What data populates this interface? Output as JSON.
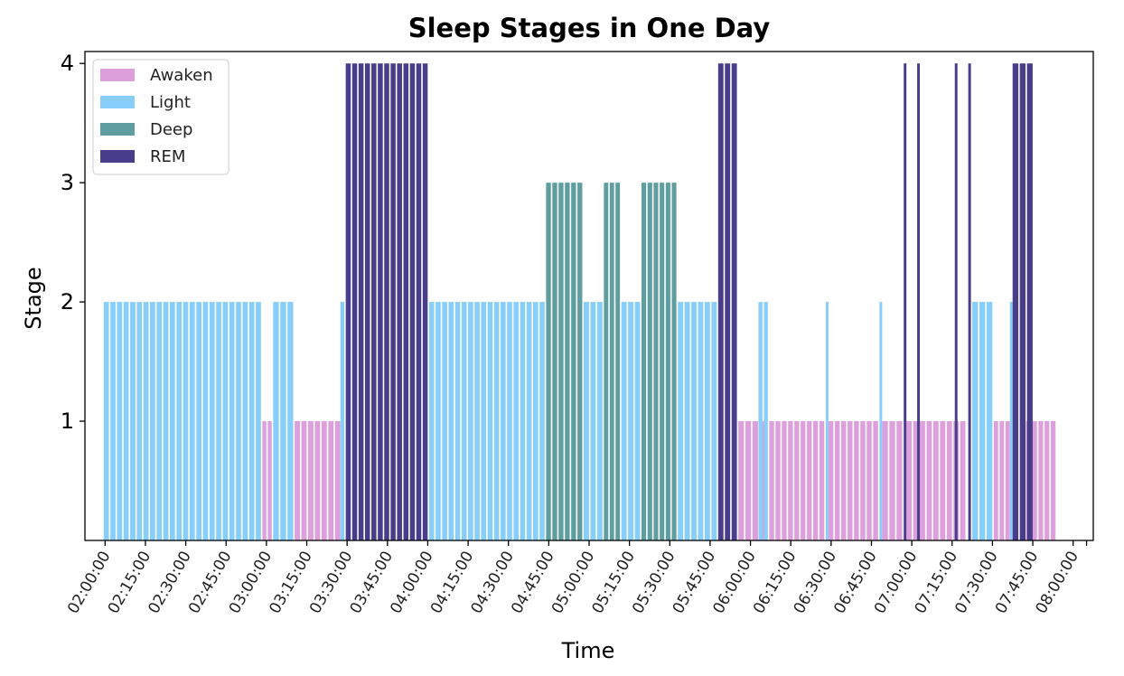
{
  "chart_data": {
    "type": "bar",
    "title": "Sleep Stages in One Day",
    "xlabel": "Time",
    "ylabel": "Stage",
    "ylim": [
      0,
      4.1
    ],
    "xlim_minutes": [
      -7.5,
      367.5
    ],
    "yticks": [
      "1",
      "2",
      "3",
      "4"
    ],
    "xticks": [
      "02:00:00",
      "02:15:00",
      "02:30:00",
      "02:45:00",
      "03:00:00",
      "03:15:00",
      "03:30:00",
      "03:45:00",
      "04:00:00",
      "04:15:00",
      "04:30:00",
      "04:45:00",
      "05:00:00",
      "05:15:00",
      "05:30:00",
      "05:45:00",
      "06:00:00",
      "06:15:00",
      "06:30:00",
      "06:45:00",
      "07:00:00",
      "07:15:00",
      "07:30:00",
      "07:45:00",
      "08:00:00"
    ],
    "grid": false,
    "legend_position": "top-left",
    "colors": {
      "Awaken": "#dda0dd",
      "Light": "#87cefa",
      "Deep": "#5f9ea0",
      "REM": "#483d8b"
    },
    "series": [
      {
        "name": "Awaken",
        "value": 1,
        "segments": [
          [
            "02:58:30",
            "03:02:30"
          ],
          [
            "03:10:30",
            "03:28:00"
          ],
          [
            "05:55:30",
            "06:06:00"
          ],
          [
            "06:07:00",
            "06:28:00"
          ],
          [
            "06:29:00",
            "06:48:00"
          ],
          [
            "06:49:00",
            "06:57:00"
          ],
          [
            "06:58:00",
            "07:20:30"
          ],
          [
            "07:30:30",
            "07:37:00"
          ],
          [
            "07:42:30",
            "07:54:00"
          ]
        ]
      },
      {
        "name": "Light",
        "value": 2,
        "segments": [
          [
            "01:59:30",
            "02:58:30"
          ],
          [
            "03:02:30",
            "03:10:30"
          ],
          [
            "03:27:30",
            "03:29:30"
          ],
          [
            "04:00:30",
            "04:44:00"
          ],
          [
            "04:58:00",
            "05:05:30"
          ],
          [
            "05:12:00",
            "05:19:30"
          ],
          [
            "05:33:00",
            "05:48:00"
          ],
          [
            "06:03:00",
            "06:07:00"
          ],
          [
            "06:28:00",
            "06:29:00"
          ],
          [
            "06:48:00",
            "06:49:00"
          ],
          [
            "07:22:30",
            "07:30:30"
          ],
          [
            "07:36:30",
            "07:37:30"
          ]
        ]
      },
      {
        "name": "Deep",
        "value": 3,
        "segments": [
          [
            "04:44:00",
            "04:58:00"
          ],
          [
            "05:05:30",
            "05:12:00"
          ],
          [
            "05:19:30",
            "05:33:00"
          ]
        ]
      },
      {
        "name": "REM",
        "value": 4,
        "segments": [
          [
            "03:29:30",
            "04:00:30"
          ],
          [
            "05:48:00",
            "05:55:30"
          ],
          [
            "06:57:00",
            "06:58:00"
          ],
          [
            "07:02:00",
            "07:03:00"
          ],
          [
            "07:16:00",
            "07:17:00"
          ],
          [
            "07:21:00",
            "07:22:00"
          ],
          [
            "07:37:30",
            "07:45:30"
          ]
        ]
      }
    ]
  }
}
